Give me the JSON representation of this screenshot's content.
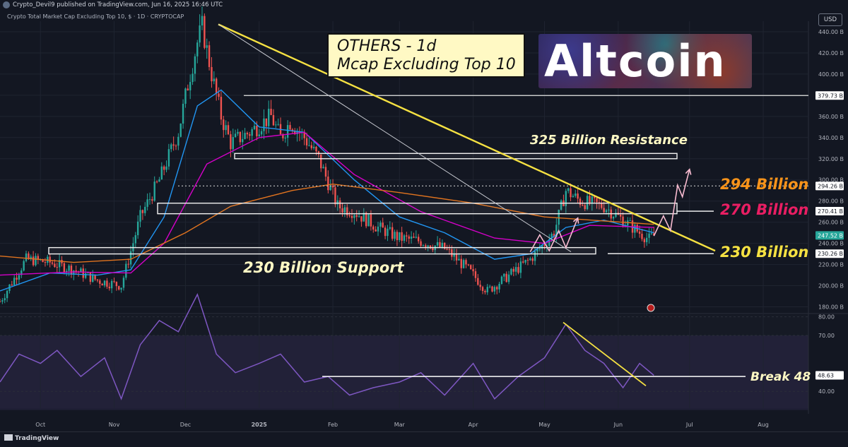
{
  "header": {
    "publisher": "Crypto_Devil9 published on TradingView.com, Jun 16, 2025 16:46 UTC",
    "symbol": "Crypto Total Market Cap Excluding Top 10, $ · 1D · CRYPTOCAP",
    "currency": "USD"
  },
  "footer": {
    "brand": "TradingView"
  },
  "title_box": {
    "line1": "OTHERS - 1d",
    "line2": "Mcap Excluding Top 10"
  },
  "logo": {
    "text": "Altcoin"
  },
  "annotations": {
    "resistance_325": "325 Billion Resistance",
    "support_230": "230 Billion Support",
    "label_294": "294 Billion",
    "label_270": "270 Billion",
    "label_230": "230 Billion",
    "break_48": "Break 48"
  },
  "colors": {
    "bg": "#131722",
    "up": "#26a69a",
    "down": "#ef5350",
    "ema_blue": "#2196f3",
    "ema_pink": "#d500c9",
    "ema_orange": "#e0731f",
    "rsi": "#7e57c2",
    "trendline": "#f5e142",
    "label_294": "#f7931a",
    "label_270": "#e91e63",
    "label_230": "#f5e142"
  },
  "chart_data": [
    {
      "type": "candlestick",
      "title": "Crypto Total Market Cap Excluding Top 10, $ · 1D · CRYPTOCAP",
      "ylim": [
        175,
        450
      ],
      "y_ticks": [
        "440.00 B",
        "420.00 B",
        "400.00 B",
        "380.00 B",
        "360.00 B",
        "340.00 B",
        "320.00 B",
        "300.00 B",
        "280.00 B",
        "260.00 B",
        "240.00 B",
        "220.00 B",
        "200.00 B",
        "180.00 B"
      ],
      "x_tick_labels": [
        "Oct",
        "Nov",
        "Dec",
        "2025",
        "Feb",
        "Mar",
        "Apr",
        "May",
        "Jun",
        "Jul",
        "Aug"
      ],
      "date_range": [
        "2024-09-14",
        "2025-08-20"
      ],
      "price_labels": [
        {
          "text": "379.73 B",
          "value": 379.73
        },
        {
          "text": "294.26 B",
          "value": 294.26
        },
        {
          "text": "270.41 B",
          "value": 270.41
        },
        {
          "text": "247.52 B",
          "value": 247.52,
          "kind": "last"
        },
        {
          "text": "230.26 B",
          "value": 230.26
        }
      ],
      "series": [
        {
          "name": "",
          "kind": "close",
          "x": [
            "2024-09-14",
            "2024-09-25",
            "2024-10-05",
            "2024-10-15",
            "2024-10-25",
            "2024-11-04",
            "2024-11-12",
            "2024-11-20",
            "2024-11-28",
            "2024-12-02",
            "2024-12-06",
            "2024-12-08",
            "2024-12-12",
            "2024-12-16",
            "2024-12-20",
            "2024-12-28",
            "2025-01-06",
            "2025-01-10",
            "2025-01-14",
            "2025-01-20",
            "2025-01-26",
            "2025-02-03",
            "2025-02-10",
            "2025-02-20",
            "2025-03-01",
            "2025-03-10",
            "2025-03-20",
            "2025-03-30",
            "2025-04-07",
            "2025-04-15",
            "2025-04-25",
            "2025-05-05",
            "2025-05-10",
            "2025-05-16",
            "2025-05-26",
            "2025-06-03",
            "2025-06-10",
            "2025-06-14",
            "2025-06-16"
          ],
          "y": [
            185,
            225,
            222,
            215,
            205,
            200,
            265,
            300,
            345,
            390,
            430,
            445,
            400,
            360,
            335,
            345,
            360,
            340,
            355,
            340,
            320,
            275,
            270,
            255,
            245,
            242,
            235,
            215,
            195,
            208,
            225,
            250,
            290,
            280,
            275,
            262,
            250,
            244,
            247.5
          ]
        },
        {
          "name": "",
          "kind": "ema20",
          "x": [
            "2024-09-14",
            "2024-10-05",
            "2024-10-25",
            "2024-11-08",
            "2024-11-22",
            "2024-12-06",
            "2024-12-16",
            "2025-01-01",
            "2025-01-20",
            "2025-02-10",
            "2025-03-01",
            "2025-03-20",
            "2025-04-10",
            "2025-04-25",
            "2025-05-10",
            "2025-05-26",
            "2025-06-16"
          ],
          "y": [
            195,
            212,
            210,
            215,
            265,
            370,
            385,
            350,
            345,
            300,
            265,
            250,
            225,
            230,
            255,
            262,
            250
          ]
        },
        {
          "name": "",
          "kind": "ema50",
          "x": [
            "2024-09-14",
            "2024-10-15",
            "2024-11-08",
            "2024-11-22",
            "2024-12-10",
            "2025-01-01",
            "2025-01-20",
            "2025-02-10",
            "2025-03-10",
            "2025-04-10",
            "2025-05-01",
            "2025-05-20",
            "2025-06-16"
          ],
          "y": [
            210,
            213,
            212,
            240,
            315,
            340,
            345,
            305,
            270,
            245,
            240,
            257,
            255
          ]
        },
        {
          "name": "",
          "kind": "ema200",
          "x": [
            "2024-09-14",
            "2024-10-15",
            "2024-11-08",
            "2024-12-01",
            "2024-12-20",
            "2025-01-15",
            "2025-02-01",
            "2025-03-01",
            "2025-04-01",
            "2025-05-01",
            "2025-06-16"
          ],
          "y": [
            228,
            222,
            225,
            250,
            275,
            290,
            296,
            288,
            278,
            265,
            258
          ]
        }
      ],
      "levels": [
        {
          "value": 379.73,
          "style": "solid"
        },
        {
          "value": 294.26,
          "style": "dotted"
        },
        {
          "value": 270.41,
          "style": "solid"
        },
        {
          "value": 230.26,
          "style": "solid"
        }
      ]
    },
    {
      "type": "line",
      "title": "",
      "ylim": [
        31,
        81
      ],
      "y_ticks": [
        "80.00",
        "70.00",
        "40.00"
      ],
      "overbought": 70,
      "oversold": 30,
      "current": {
        "text": "48.63",
        "value": 48.63
      },
      "series": [
        {
          "name": "",
          "x": [
            "2024-09-14",
            "2024-09-22",
            "2024-10-01",
            "2024-10-08",
            "2024-10-18",
            "2024-10-28",
            "2024-11-04",
            "2024-11-12",
            "2024-11-20",
            "2024-11-28",
            "2024-12-06",
            "2024-12-14",
            "2024-12-22",
            "2025-01-01",
            "2025-01-10",
            "2025-01-20",
            "2025-01-30",
            "2025-02-08",
            "2025-02-18",
            "2025-03-01",
            "2025-03-10",
            "2025-03-20",
            "2025-04-01",
            "2025-04-10",
            "2025-04-20",
            "2025-05-01",
            "2025-05-10",
            "2025-05-18",
            "2025-05-26",
            "2025-06-03",
            "2025-06-10",
            "2025-06-16"
          ],
          "y": [
            45,
            60,
            55,
            62,
            48,
            58,
            36,
            65,
            78,
            72,
            92,
            60,
            50,
            55,
            60,
            45,
            48,
            38,
            42,
            45,
            50,
            38,
            55,
            36,
            48,
            58,
            76,
            62,
            55,
            42,
            55,
            48.6
          ]
        }
      ]
    }
  ]
}
